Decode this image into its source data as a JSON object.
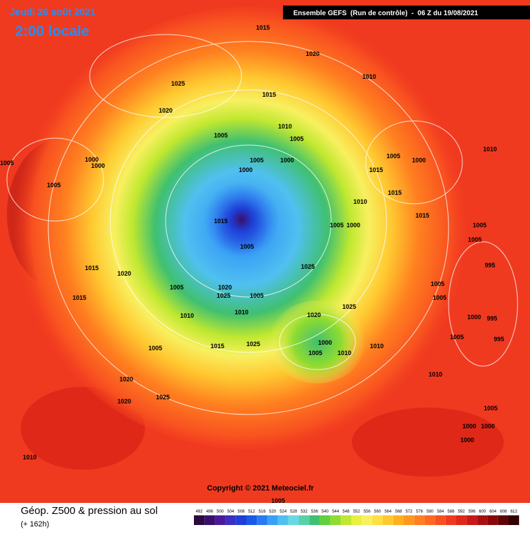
{
  "header": {
    "date": "Jeudi 26 août 2021",
    "time": "2:00 locale",
    "run": "Ensemble GEFS  (Run de contrôle)  -  06 Z du 19/08/2021"
  },
  "map": {
    "isobar_labels": [
      "1015",
      "1020",
      "1010",
      "1025",
      "1020",
      "1015",
      "1010",
      "1005",
      "1005",
      "1005",
      "1000",
      "1000",
      "1000",
      "1000",
      "1005",
      "1005",
      "1005",
      "1000",
      "1015",
      "1010",
      "1015",
      "1010",
      "1015",
      "1005",
      "1000",
      "1015",
      "1005",
      "1005",
      "1005",
      "995",
      "1025",
      "1020",
      "1015",
      "1005",
      "1020",
      "1025",
      "1005",
      "1015",
      "1010",
      "1010",
      "1025",
      "1005",
      "1005",
      "1020",
      "1000",
      "995",
      "995",
      "1005",
      "1000",
      "1005",
      "1010",
      "1025",
      "1015",
      "1010",
      "1005",
      "1020",
      "1010",
      "1020",
      "1025",
      "1005",
      "1000",
      "1000",
      "1000",
      "1010",
      "1005"
    ],
    "copyright": "Copyright © 2021 Meteociel.fr"
  },
  "footer": {
    "title": "Géop. Z500 & pression au sol",
    "lead": "(+ 162h)",
    "legend": {
      "values": [
        492,
        496,
        500,
        504,
        508,
        512,
        516,
        520,
        524,
        528,
        532,
        536,
        540,
        544,
        548,
        552,
        556,
        560,
        564,
        568,
        572,
        576,
        580,
        584,
        588,
        592,
        596,
        600,
        604,
        608,
        612
      ],
      "colors": [
        "#2b0a3d",
        "#3a0f6b",
        "#4b1a9a",
        "#3a2fc0",
        "#1f3fd8",
        "#1a5ae8",
        "#2a7af0",
        "#3aa0f5",
        "#50c0f0",
        "#6ad8e0",
        "#5ad0a8",
        "#40c070",
        "#60d040",
        "#90dc30",
        "#c0e830",
        "#e8f040",
        "#f8f060",
        "#ffe040",
        "#ffc830",
        "#ffb020",
        "#ff9820",
        "#ff8020",
        "#ff6820",
        "#f85020",
        "#f03a20",
        "#e02818",
        "#c81818",
        "#a81010",
        "#880808",
        "#600404",
        "#300000"
      ]
    }
  }
}
